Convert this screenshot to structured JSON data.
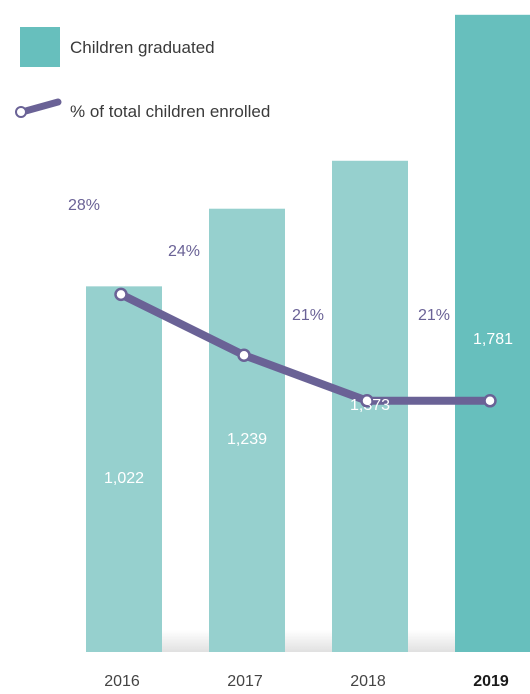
{
  "chart_data": {
    "type": "bar",
    "categories": [
      "2016",
      "2017",
      "2018",
      "2019"
    ],
    "highlight_category": "2019",
    "series": [
      {
        "name": "Children graduated",
        "type": "bar",
        "values": [
          1022,
          1239,
          1373,
          1781
        ],
        "labels": [
          "1,022",
          "1,239",
          "1,373",
          "1,781"
        ],
        "color": "#96d0ce",
        "highlight_color": "#67bfbd"
      },
      {
        "name": "% of total children enrolled",
        "type": "line",
        "values": [
          28,
          24,
          21,
          21
        ],
        "labels": [
          "28%",
          "24%",
          "21%",
          "21%"
        ],
        "color": "#6a6296"
      }
    ],
    "title": "",
    "xlabel": "",
    "ylabel": "",
    "ylim": [
      0,
      1800
    ],
    "y2lim": [
      0,
      50
    ],
    "grid": false,
    "legend": "top-left"
  }
}
